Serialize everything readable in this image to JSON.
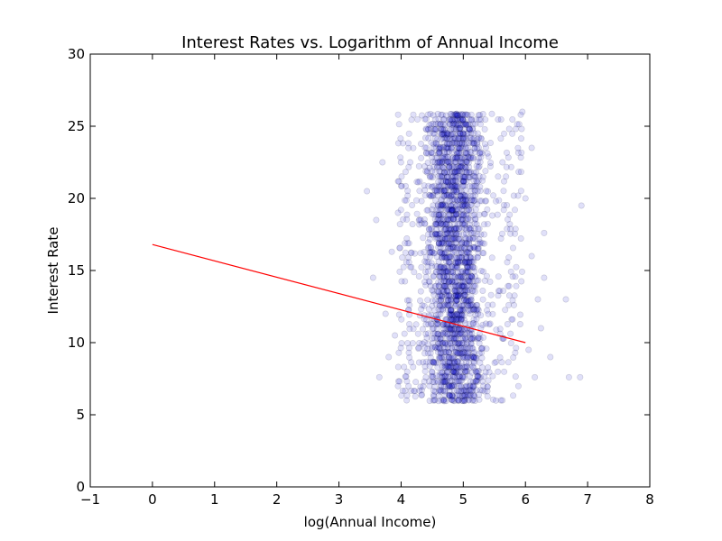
{
  "chart_data": {
    "type": "scatter",
    "title": "Interest Rates vs. Logarithm of Annual Income",
    "xlabel": "log(Annual Income)",
    "ylabel": "Interest Rate",
    "xlim": [
      -1,
      8
    ],
    "ylim": [
      0,
      30
    ],
    "xticks": [
      -1,
      0,
      1,
      2,
      3,
      4,
      5,
      6,
      7,
      8
    ],
    "xtick_labels": [
      "−1",
      "0",
      "1",
      "2",
      "3",
      "4",
      "5",
      "6",
      "7",
      "8"
    ],
    "yticks": [
      0,
      5,
      10,
      15,
      20,
      25,
      30
    ],
    "ytick_labels": [
      "0",
      "5",
      "10",
      "15",
      "20",
      "25",
      "30"
    ],
    "grid": false,
    "marker_color": "#0000cc",
    "marker_alpha": 0.12,
    "line_color": "#ff0000",
    "scatter_summary": {
      "x_core_range": [
        4.1,
        5.6
      ],
      "x_outlier_range": [
        3.45,
        6.9
      ],
      "y_range": [
        6.0,
        26.0
      ]
    },
    "series": [
      {
        "type": "scatter",
        "points": [
          [
            3.45,
            20.5
          ],
          [
            3.65,
            7.6
          ],
          [
            3.55,
            14.5
          ],
          [
            3.75,
            12.0
          ],
          [
            3.6,
            18.5
          ],
          [
            3.85,
            16.3
          ],
          [
            3.9,
            10.5
          ],
          [
            3.7,
            22.5
          ],
          [
            3.8,
            9.0
          ],
          [
            3.95,
            19.0
          ],
          [
            6.15,
            7.6
          ],
          [
            6.2,
            13.0
          ],
          [
            6.3,
            14.5
          ],
          [
            6.3,
            17.6
          ],
          [
            6.25,
            11.0
          ],
          [
            6.05,
            9.5
          ],
          [
            6.1,
            16.0
          ],
          [
            6.0,
            20.0
          ],
          [
            6.1,
            23.5
          ],
          [
            5.95,
            26.0
          ],
          [
            6.65,
            13.0
          ],
          [
            6.7,
            7.6
          ],
          [
            6.88,
            7.6
          ],
          [
            6.9,
            19.5
          ],
          [
            6.4,
            9.0
          ]
        ]
      },
      {
        "type": "line",
        "name": "",
        "points": [
          [
            0,
            16.8
          ],
          [
            6.0,
            10.0
          ]
        ]
      }
    ]
  }
}
